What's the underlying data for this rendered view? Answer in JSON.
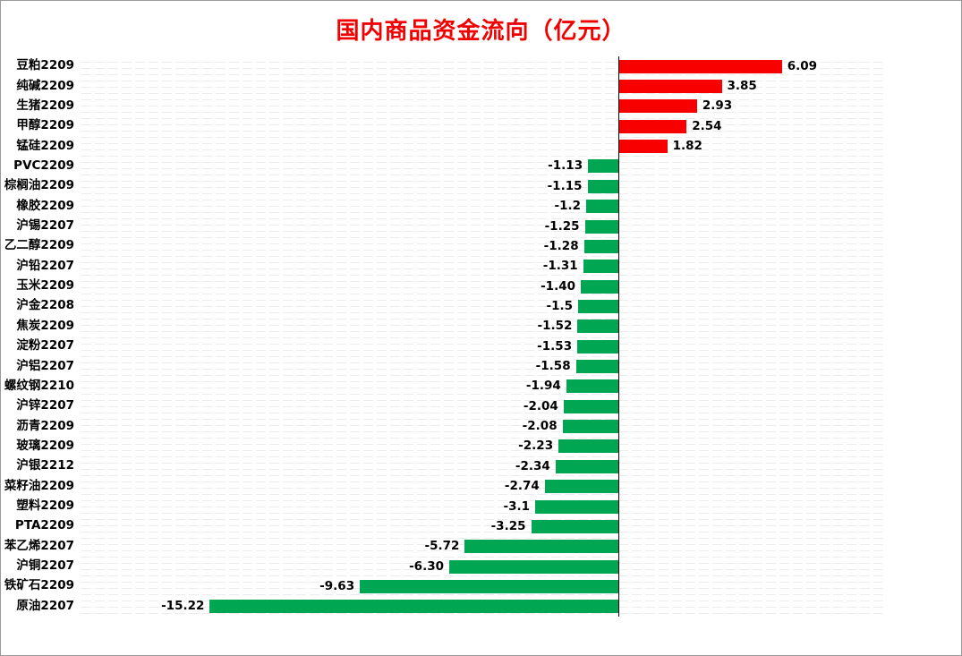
{
  "chart_data": {
    "type": "bar",
    "orientation": "horizontal",
    "title": "国内商品资金流向（亿元）",
    "categories": [
      "豆粕2209",
      "纯碱2209",
      "生猪2209",
      "甲醇2209",
      "锰硅2209",
      "PVC2209",
      "棕榈油2209",
      "橡胶2209",
      "沪锡2207",
      "乙二醇2209",
      "沪铅2207",
      "玉米2209",
      "沪金2208",
      "焦炭2209",
      "淀粉2207",
      "沪铝2207",
      "螺纹钢2210",
      "沪锌2207",
      "沥青2209",
      "玻璃2209",
      "沪银2212",
      "菜籽油2209",
      "塑料2209",
      "PTA2209",
      "苯乙烯2207",
      "沪铜2207",
      "铁矿石2209",
      "原油2207"
    ],
    "values": [
      6.09,
      3.85,
      2.93,
      2.54,
      1.82,
      -1.13,
      -1.15,
      -1.2,
      -1.25,
      -1.28,
      -1.31,
      -1.4,
      -1.5,
      -1.52,
      -1.53,
      -1.58,
      -1.94,
      -2.04,
      -2.08,
      -2.23,
      -2.34,
      -2.74,
      -3.1,
      -3.25,
      -5.72,
      -6.3,
      -9.63,
      -15.22
    ],
    "value_labels": [
      "6.09",
      "3.85",
      "2.93",
      "2.54",
      "1.82",
      "-1.13",
      "-1.15",
      "-1.2",
      "-1.25",
      "-1.28",
      "-1.31",
      "-1.40",
      "-1.5",
      "-1.52",
      "-1.53",
      "-1.58",
      "-1.94",
      "-2.04",
      "-2.08",
      "-2.23",
      "-2.34",
      "-2.74",
      "-3.1",
      "-3.25",
      "-5.72",
      "-6.30",
      "-9.63",
      "-15.22"
    ],
    "xlim": [
      -20,
      10
    ],
    "zero_line": true,
    "grid": "dotted-rows",
    "legend": "none",
    "ylabel": "",
    "xlabel": "",
    "colors": {
      "positive_bar": "#f80000",
      "negative_bar": "#00a651",
      "title_text": "#f20000",
      "value_text": "#000000",
      "axis_line": "#000000",
      "grid_texture": "#ececec",
      "frame_border": "#9a9a9a",
      "background": "#ffffff"
    }
  }
}
